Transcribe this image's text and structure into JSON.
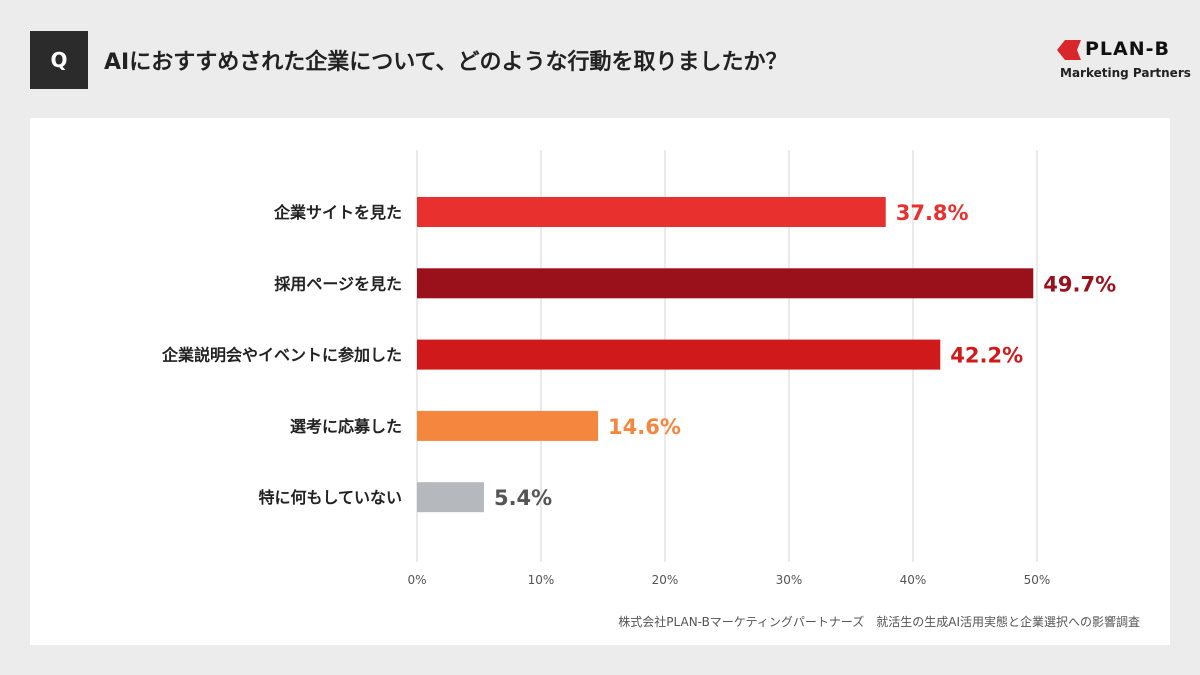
{
  "header": {
    "q_label": "Q",
    "title": "AIにおすすめされた企業について、どのような行動を取りましたか？"
  },
  "logo": {
    "brand": "PLAN-B",
    "sub": "Marketing Partners",
    "color": "#d9262b"
  },
  "source": "株式会社PLAN-Bマーケティングパートナーズ　就活生の生成AI活用実態と企業選択への影響調査",
  "chart_data": {
    "type": "bar",
    "orientation": "horizontal",
    "categories": [
      "企業サイトを見た",
      "採用ページを見た",
      "企業説明会やイベントに参加した",
      "選考に応募した",
      "特に何もしていない"
    ],
    "values": [
      37.8,
      49.7,
      42.2,
      14.6,
      5.4
    ],
    "data_labels": [
      "37.8%",
      "49.7%",
      "42.2%",
      "14.6%",
      "5.4%"
    ],
    "colors": [
      "#e8302f",
      "#9a101b",
      "#d0191a",
      "#f5863e",
      "#b5b8bd"
    ],
    "label_colors": [
      "#e8302f",
      "#9a101b",
      "#d0191a",
      "#f5863e",
      "#555555"
    ],
    "xlim": [
      0,
      50
    ],
    "ticks": [
      0,
      10,
      20,
      30,
      40,
      50
    ],
    "tick_labels": [
      "0%",
      "10%",
      "20%",
      "30%",
      "40%",
      "50%"
    ],
    "grid": true
  }
}
